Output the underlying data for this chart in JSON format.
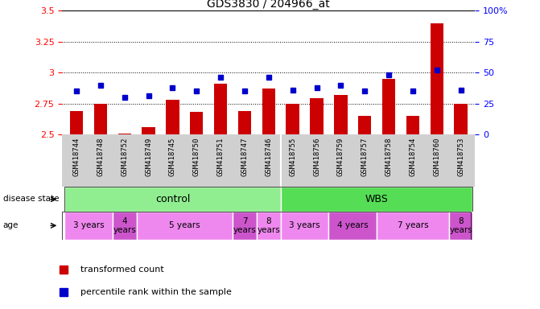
{
  "title": "GDS3830 / 204966_at",
  "samples": [
    "GSM418744",
    "GSM418748",
    "GSM418752",
    "GSM418749",
    "GSM418745",
    "GSM418750",
    "GSM418751",
    "GSM418747",
    "GSM418746",
    "GSM418755",
    "GSM418756",
    "GSM418759",
    "GSM418757",
    "GSM418758",
    "GSM418754",
    "GSM418760",
    "GSM418753"
  ],
  "red_values": [
    2.69,
    2.75,
    2.51,
    2.56,
    2.78,
    2.68,
    2.91,
    2.69,
    2.87,
    2.75,
    2.79,
    2.82,
    2.65,
    2.95,
    2.65,
    3.4,
    2.75
  ],
  "blue_values": [
    35,
    40,
    30,
    31,
    38,
    35,
    46,
    35,
    46,
    36,
    38,
    40,
    35,
    48,
    35,
    52,
    36
  ],
  "ylim_left": [
    2.5,
    3.5
  ],
  "ylim_right": [
    0,
    100
  ],
  "yticks_left": [
    2.5,
    2.75,
    3.0,
    3.25,
    3.5
  ],
  "yticks_right": [
    0,
    25,
    50,
    75,
    100
  ],
  "ytick_labels_left": [
    "2.5",
    "2.75",
    "3",
    "3.25",
    "3.5"
  ],
  "ytick_labels_right": [
    "0",
    "25",
    "50",
    "75",
    "100%"
  ],
  "hlines": [
    2.75,
    3.0,
    3.25
  ],
  "bar_color": "#cc0000",
  "dot_color": "#0000cc",
  "bar_bottom": 2.5,
  "disease_state_label": "disease state",
  "age_label": "age",
  "legend_bar": "transformed count",
  "legend_dot": "percentile rank within the sample",
  "control": {
    "start": 0,
    "end": 8,
    "color": "#90ee90",
    "label": "control"
  },
  "wbs": {
    "start": 9,
    "end": 16,
    "color": "#55dd55",
    "label": "WBS"
  },
  "age_groups": [
    {
      "label": "3 years",
      "start": 0,
      "end": 1,
      "color": "#ee88ee"
    },
    {
      "label": "4\nyears",
      "start": 2,
      "end": 2,
      "color": "#cc55cc"
    },
    {
      "label": "5 years",
      "start": 3,
      "end": 6,
      "color": "#ee88ee"
    },
    {
      "label": "7\nyears",
      "start": 7,
      "end": 7,
      "color": "#cc55cc"
    },
    {
      "label": "8\nyears",
      "start": 8,
      "end": 8,
      "color": "#ee88ee"
    },
    {
      "label": "3 years",
      "start": 9,
      "end": 10,
      "color": "#ee88ee"
    },
    {
      "label": "4 years",
      "start": 11,
      "end": 12,
      "color": "#cc55cc"
    },
    {
      "label": "7 years",
      "start": 13,
      "end": 15,
      "color": "#ee88ee"
    },
    {
      "label": "8\nyears",
      "start": 16,
      "end": 16,
      "color": "#cc55cc"
    }
  ],
  "xtick_area_color": "#d0d0d0",
  "plot_bg_color": "#ffffff",
  "fig_bg_color": "#ffffff"
}
